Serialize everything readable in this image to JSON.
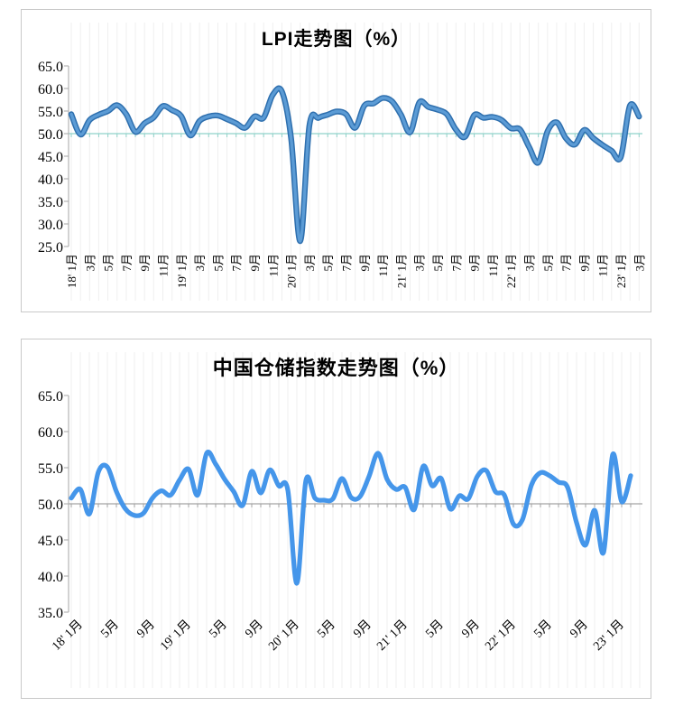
{
  "chart_data": [
    {
      "type": "line",
      "title": "LPI走势图（%）",
      "x_start": "2018-01",
      "x_end": "2023-03",
      "freq": "monthly",
      "x_tick_labels": [
        "18' 1月",
        "3月",
        "5月",
        "7月",
        "9月",
        "11月",
        "19' 1月",
        "3月",
        "5月",
        "7月",
        "9月",
        "11月",
        "20' 1月",
        "3月",
        "5月",
        "7月",
        "9月",
        "11月",
        "21' 1月",
        "3月",
        "5月",
        "7月",
        "9月",
        "11月",
        "22' 1月",
        "3月",
        "5月",
        "7月",
        "9月",
        "11月",
        "23' 1月",
        "3月"
      ],
      "x_label_every_n_months": 2,
      "x_label_rotation": -90,
      "y_tick_labels": [
        "65.0",
        "60.0",
        "55.0",
        "50.0",
        "45.0",
        "40.0",
        "35.0",
        "30.0",
        "25.0"
      ],
      "ylim": [
        25,
        65
      ],
      "y_tick_step": 5,
      "reference_line": 50,
      "grid_vertical": "monthly",
      "legend": "none",
      "values": [
        54.3,
        49.8,
        53.0,
        54.2,
        55.0,
        56.3,
        54.3,
        50.4,
        52.3,
        53.6,
        56.1,
        55.2,
        53.9,
        49.6,
        52.8,
        53.8,
        54.0,
        53.2,
        52.3,
        51.3,
        53.8,
        53.5,
        58.6,
        59.3,
        49.0,
        26.2,
        51.8,
        53.5,
        54.2,
        54.9,
        54.3,
        51.3,
        56.2,
        56.7,
        57.9,
        57.2,
        54.2,
        50.3,
        56.9,
        55.9,
        55.3,
        54.3,
        50.9,
        49.3,
        54.1,
        53.5,
        53.7,
        53.0,
        51.2,
        50.9,
        47.0,
        43.6,
        50.5,
        52.5,
        49.0,
        47.6,
        50.8,
        49.0,
        47.5,
        46.2,
        44.8,
        56.2,
        53.8
      ],
      "colors": {
        "line_edge": "#2e6fae",
        "line_core": "#5b9bd5",
        "reference_line": "#8fd2c9",
        "gridline": "#efefef",
        "axis": "#b3b3b3",
        "text": "#000000"
      }
    },
    {
      "type": "line",
      "title": "中国仓储指数走势图（%）",
      "x_start": "2018-01",
      "x_end": "2023-03",
      "freq": "monthly",
      "x_tick_labels": [
        "18' 1月",
        "5月",
        "9月",
        "19' 1月",
        "5月",
        "9月",
        "20' 1月",
        "5月",
        "9月",
        "21' 1月",
        "5月",
        "9月",
        "22' 1月",
        "5月",
        "9月",
        "23' 1月"
      ],
      "x_label_every_n_months": 4,
      "x_label_rotation": -45,
      "y_tick_labels": [
        "65.0",
        "60.0",
        "55.0",
        "50.0",
        "45.0",
        "40.0",
        "35.0"
      ],
      "ylim": [
        35,
        65
      ],
      "y_tick_step": 5,
      "reference_line": 50,
      "grid_vertical": "monthly",
      "legend": "none",
      "values": [
        50.8,
        52.0,
        48.6,
        54.4,
        55.1,
        51.7,
        49.3,
        48.4,
        48.7,
        50.8,
        51.8,
        51.2,
        53.3,
        54.8,
        51.2,
        57.0,
        55.5,
        53.4,
        51.7,
        49.8,
        54.5,
        51.5,
        54.7,
        52.5,
        51.9,
        39.0,
        53.2,
        50.8,
        50.5,
        50.7,
        53.5,
        50.9,
        51.0,
        53.8,
        57.0,
        53.4,
        52.0,
        52.3,
        49.2,
        55.2,
        52.5,
        53.5,
        49.3,
        51.1,
        50.7,
        53.8,
        54.6,
        51.7,
        51.2,
        47.2,
        47.8,
        52.6,
        54.3,
        53.9,
        53.0,
        52.3,
        47.4,
        44.3,
        49.1,
        43.3,
        56.8,
        50.3,
        53.9
      ],
      "colors": {
        "line": "#4596ea",
        "reference_line": "#a3a3a3",
        "gridline": "#efefef",
        "axis": "#b3b3b3",
        "text": "#000000"
      }
    }
  ]
}
